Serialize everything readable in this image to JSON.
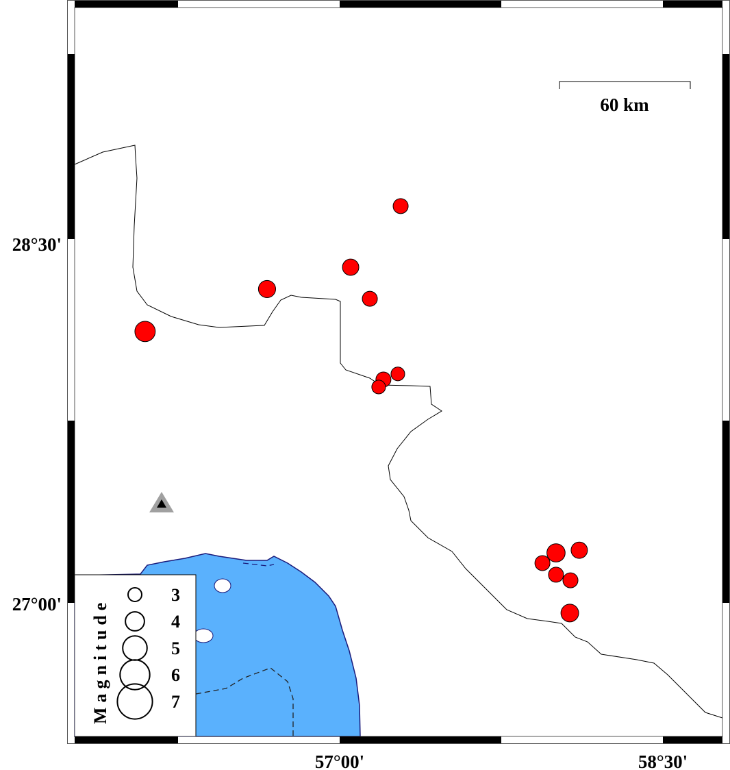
{
  "map": {
    "lon_ticks": [
      {
        "value": 57.0,
        "label": "57°00'"
      },
      {
        "value": 58.5,
        "label": "58°30'"
      }
    ],
    "lat_ticks": [
      {
        "value": 28.5,
        "label": "28°30'"
      },
      {
        "value": 27.0,
        "label": "27°00'"
      }
    ],
    "scale_bar": {
      "label": "60 km"
    },
    "colors": {
      "sea": "#5ab1fd",
      "coast": "#1a1a7a",
      "earthquake": "#ff0000",
      "station": "#a0a0a0"
    },
    "earthquakes": [
      {
        "lon": 57.283,
        "lat": 28.636,
        "mag": 3.0
      },
      {
        "lon": 57.051,
        "lat": 28.384,
        "mag": 3.25
      },
      {
        "lon": 56.663,
        "lat": 28.294,
        "mag": 3.4
      },
      {
        "lon": 57.14,
        "lat": 28.254,
        "mag": 3.0
      },
      {
        "lon": 56.097,
        "lat": 28.119,
        "mag": 4.0
      },
      {
        "lon": 57.27,
        "lat": 27.944,
        "mag": 2.75
      },
      {
        "lon": 57.203,
        "lat": 27.921,
        "mag": 3.0
      },
      {
        "lon": 57.181,
        "lat": 27.89,
        "mag": 2.75
      },
      {
        "lon": 58.004,
        "lat": 27.206,
        "mag": 3.6
      },
      {
        "lon": 58.112,
        "lat": 27.217,
        "mag": 3.25
      },
      {
        "lon": 57.941,
        "lat": 27.164,
        "mag": 3.0
      },
      {
        "lon": 58.004,
        "lat": 27.116,
        "mag": 3.0
      },
      {
        "lon": 58.071,
        "lat": 27.093,
        "mag": 3.0
      },
      {
        "lon": 58.068,
        "lat": 26.958,
        "mag": 3.5
      }
    ],
    "station": {
      "symbol": "triangle"
    },
    "legend": {
      "title": "Magnitude",
      "entries": [
        {
          "mag": 3,
          "label": "3"
        },
        {
          "mag": 4,
          "label": "4"
        },
        {
          "mag": 5,
          "label": "5"
        },
        {
          "mag": 6,
          "label": "6"
        },
        {
          "mag": 7,
          "label": "7"
        }
      ]
    }
  }
}
